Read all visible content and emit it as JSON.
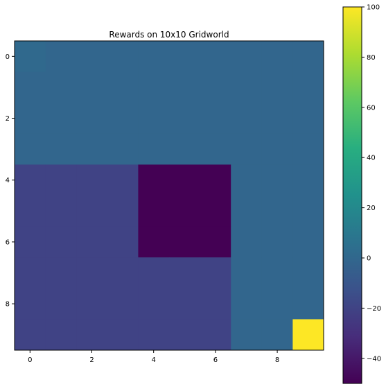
{
  "chart_data": {
    "type": "heatmap",
    "title": "Rewards on 10x10 Gridworld",
    "xlabel": "",
    "ylabel": "",
    "x_ticks": [
      "0",
      "2",
      "4",
      "6",
      "8"
    ],
    "y_ticks": [
      "0",
      "2",
      "4",
      "6",
      "8"
    ],
    "colormap": "viridis",
    "colorbar_ticks": [
      "100",
      "80",
      "60",
      "40",
      "20",
      "0",
      "−20",
      "−40"
    ],
    "vmin": -50,
    "vmax": 100,
    "grid": false,
    "values": [
      [
        1,
        -1,
        -1,
        -1,
        -1,
        -1,
        -1,
        -1,
        -1,
        -1
      ],
      [
        -1,
        -1,
        -1,
        -1,
        -1,
        -1,
        -1,
        -1,
        -1,
        -1
      ],
      [
        -1,
        -1,
        -1,
        -1,
        -1,
        -1,
        -1,
        -1,
        -1,
        -1
      ],
      [
        -1,
        -1,
        -1,
        -1,
        -1,
        -1,
        -1,
        -1,
        -1,
        -1
      ],
      [
        -20,
        -20,
        -20,
        -20,
        -50,
        -50,
        -50,
        -1,
        -1,
        -1
      ],
      [
        -20,
        -20,
        -20,
        -20,
        -50,
        -50,
        -50,
        -1,
        -1,
        -1
      ],
      [
        -20,
        -20,
        -20,
        -20,
        -50,
        -50,
        -50,
        -1,
        -1,
        -1
      ],
      [
        -20,
        -20,
        -20,
        -20,
        -20,
        -20,
        -20,
        -1,
        -1,
        -1
      ],
      [
        -20,
        -20,
        -20,
        -20,
        -20,
        -20,
        -20,
        -1,
        -1,
        -1
      ],
      [
        -20,
        -20,
        -20,
        -20,
        -20,
        -20,
        -20,
        -1,
        -1,
        100
      ]
    ]
  }
}
